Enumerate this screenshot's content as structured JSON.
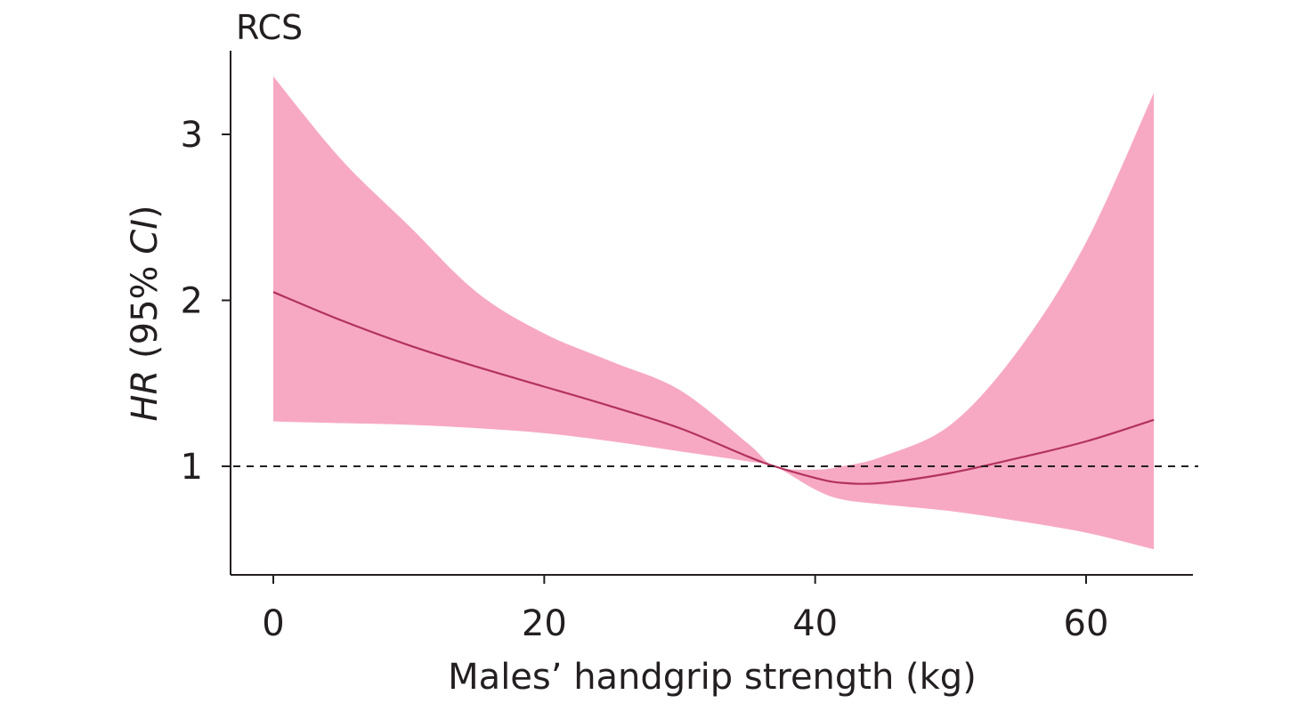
{
  "chart_data": {
    "type": "area",
    "title": "RCS",
    "xlabel": "Males’ handgrip strength (kg)",
    "ylabel": {
      "part1": "HR",
      "part2": " (95% ",
      "part3": "CI",
      "part4": ")"
    },
    "xlim": [
      -3,
      68
    ],
    "ylim": [
      0.38,
      3.5
    ],
    "xticks": [
      {
        "value": 0,
        "label": "0"
      },
      {
        "value": 20,
        "label": "20"
      },
      {
        "value": 40,
        "label": "40"
      },
      {
        "value": 60,
        "label": "60"
      }
    ],
    "yticks": [
      {
        "value": 1,
        "label": "1"
      },
      {
        "value": 2,
        "label": "2"
      },
      {
        "value": 3,
        "label": "3"
      }
    ],
    "reference_line": {
      "y": 1,
      "style": "dashed"
    },
    "grid": false,
    "colors": {
      "band": "#f06292",
      "band_opacity": 0.55,
      "line": "#b3325e",
      "axis": "#231f20"
    },
    "series": [
      {
        "x": [
          0,
          5,
          10,
          15,
          20,
          25,
          30,
          35,
          37,
          40,
          42,
          45,
          50,
          55,
          60,
          65
        ],
        "y": [
          2.05,
          1.88,
          1.73,
          1.6,
          1.48,
          1.36,
          1.23,
          1.06,
          1.0,
          0.93,
          0.9,
          0.9,
          0.96,
          1.05,
          1.15,
          1.28
        ],
        "lower": [
          1.27,
          1.26,
          1.25,
          1.23,
          1.2,
          1.15,
          1.09,
          1.03,
          1.0,
          0.86,
          0.8,
          0.77,
          0.73,
          0.67,
          0.6,
          0.5
        ],
        "upper": [
          3.35,
          2.85,
          2.45,
          2.05,
          1.8,
          1.63,
          1.46,
          1.14,
          1.0,
          0.98,
          1.0,
          1.06,
          1.25,
          1.7,
          2.35,
          3.25
        ]
      }
    ]
  }
}
